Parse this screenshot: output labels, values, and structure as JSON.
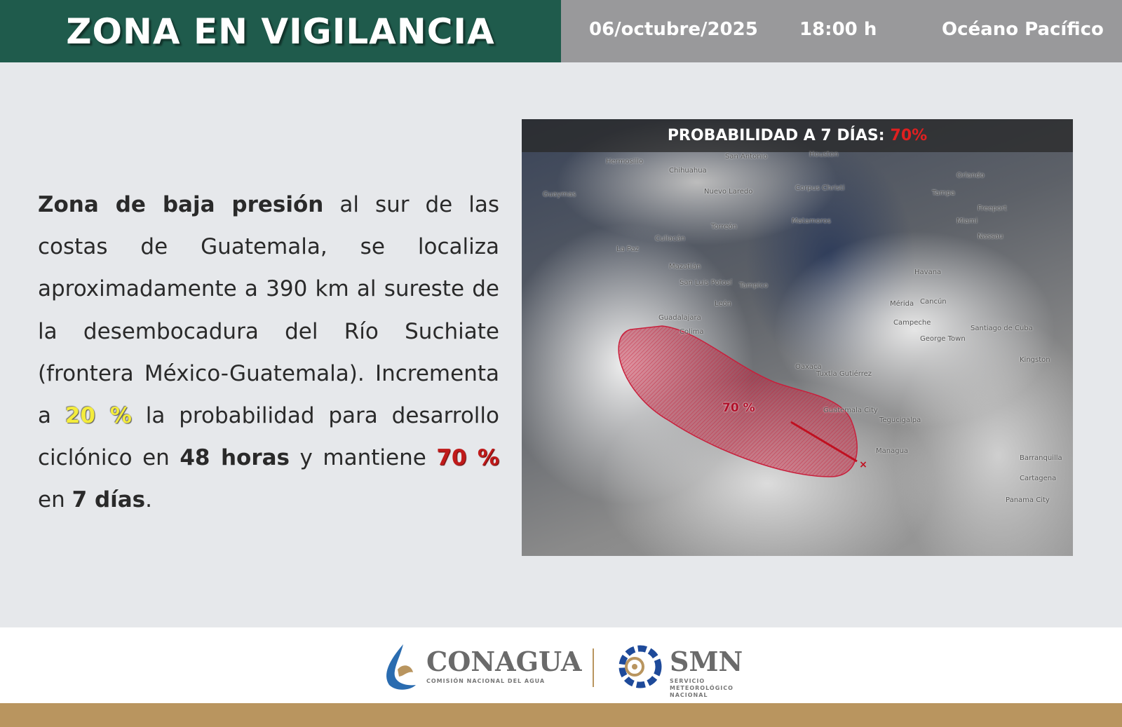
{
  "header": {
    "title": "ZONA EN VIGILANCIA",
    "date": "06/octubre/2025",
    "time": "18:00 h",
    "region": "Océano Pacífico"
  },
  "body": {
    "p1_bold": "Zona de baja presión",
    "p1": " al sur de las costas de Guatemala, se localiza aproximadamente a 390 km al sureste de la desembocadura del Río Suchiate (frontera México-Guatemala). Incrementa a ",
    "prob48": "20 %",
    "p2": "  la probabilidad para desarrollo ciclónico en ",
    "p2_bold": "48 horas",
    "p3": " y mantiene ",
    "prob7": "70 %",
    "p4": " en ",
    "p4_bold": "7 días",
    "p5": "."
  },
  "map": {
    "banner_label": "PROBABILIDAD A 7 DÍAS:",
    "banner_value": "70%",
    "zone_label": "70 %",
    "zone_color": "#c8203c",
    "cities": [
      "Hermosillo",
      "Chihuahua",
      "San Antonio",
      "Houston",
      "Guaymas",
      "Nuevo Laredo",
      "Corpus Christi",
      "Orlando",
      "Tampa",
      "Freeport",
      "Miami",
      "Nassau",
      "Culiacán",
      "La Paz",
      "Torreón",
      "Matamoros",
      "Mazatlán",
      "San Luis Potosí",
      "Tampico",
      "Havana",
      "León",
      "Mérida",
      "Cancún",
      "Guadalajara",
      "Campeche",
      "Colima",
      "Santiago de Cuba",
      "Oaxaca",
      "George Town",
      "Tuxtla Gutiérrez",
      "Kingston",
      "Guatemala City",
      "Tegucigalpa",
      "Managua",
      "Barranquilla",
      "Cartagena",
      "Panama City"
    ]
  },
  "footer": {
    "conagua": "CONAGUA",
    "conagua_sub": "COMISIÓN NACIONAL DEL AGUA",
    "smn": "SMN",
    "smn_sub1": "SERVICIO",
    "smn_sub2": "METEOROLÓGICO",
    "smn_sub3": "NACIONAL"
  }
}
